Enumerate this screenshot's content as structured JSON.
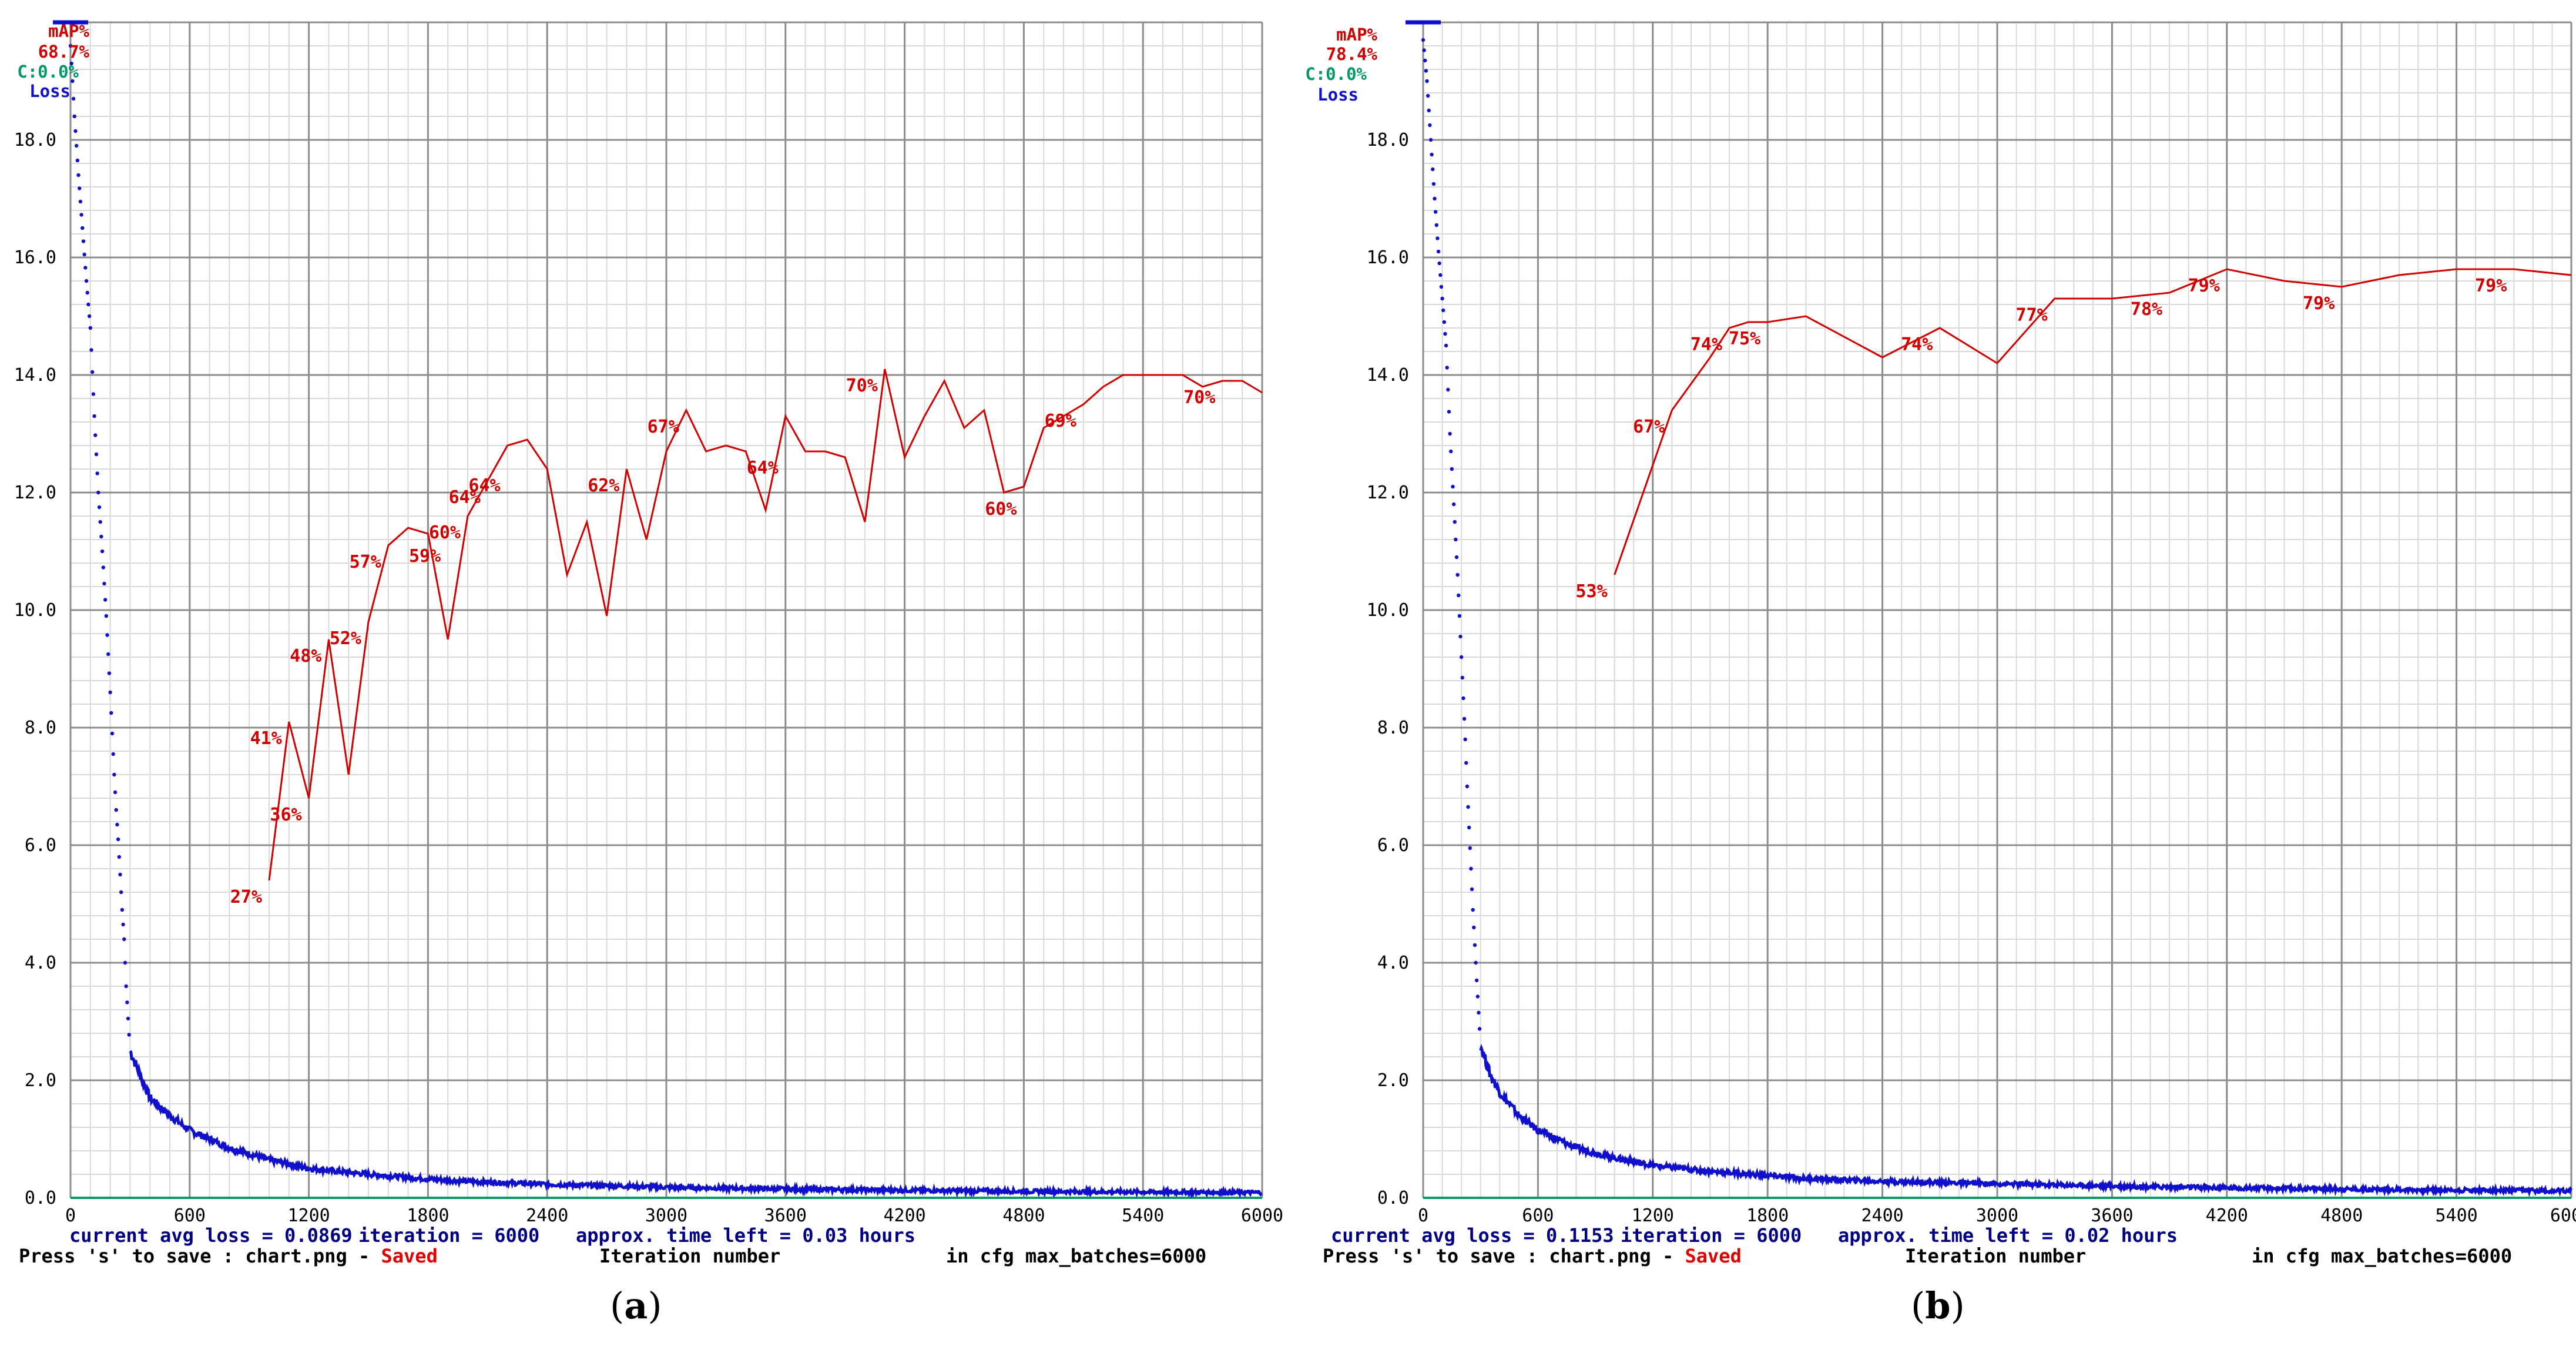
{
  "colors": {
    "map": "#d00000",
    "loss": "#1010cc",
    "accuracy": "#009966",
    "grid_major": "#8c8c8c",
    "grid_minor": "#dadada",
    "info_text": "#000080",
    "saved": "#e00000"
  },
  "charts": [
    {
      "id": "a",
      "caption_open": "(",
      "caption_letter": "a",
      "caption_close": ")",
      "legend": {
        "map_label": "mAP%",
        "map_value": "68.7%",
        "acc_label": "C:0.0%",
        "loss_label": "Loss"
      },
      "info": {
        "avg_loss": "current avg loss = 0.0869",
        "iteration": "iteration = 6000",
        "time_left": "approx. time left = 0.03 hours",
        "save_prefix": "Press 's' to save : chart.png -",
        "saved": "Saved",
        "xlabel": "Iteration number",
        "max_batches": "in cfg max_batches=6000"
      },
      "chart_data": {
        "type": "line",
        "xlim": [
          0,
          6000
        ],
        "ylim": [
          0,
          20
        ],
        "x_ticks": [
          "0",
          "600",
          "1200",
          "1800",
          "2400",
          "3000",
          "3600",
          "4200",
          "4800",
          "5400",
          "6000"
        ],
        "y_ticks": [
          "0.0",
          "2.0",
          "4.0",
          "6.0",
          "8.0",
          "10.0",
          "12.0",
          "14.0",
          "16.0",
          "18.0"
        ],
        "grid": true,
        "map_series": {
          "x": [
            1000,
            1100,
            1200,
            1300,
            1400,
            1500,
            1600,
            1700,
            1800,
            1900,
            2000,
            2100,
            2200,
            2300,
            2400,
            2500,
            2600,
            2700,
            2800,
            2900,
            3000,
            3100,
            3200,
            3300,
            3400,
            3500,
            3600,
            3700,
            3800,
            3900,
            4000,
            4100,
            4200,
            4300,
            4400,
            4500,
            4600,
            4700,
            4800,
            4900,
            5000,
            5100,
            5200,
            5300,
            5400,
            5500,
            5600,
            5700,
            5800,
            5900,
            6000
          ],
          "y": [
            5.4,
            8.1,
            6.8,
            9.5,
            7.2,
            9.8,
            11.1,
            11.4,
            11.3,
            9.5,
            11.6,
            12.2,
            12.8,
            12.9,
            12.4,
            10.6,
            11.5,
            9.9,
            12.4,
            11.2,
            12.7,
            13.4,
            12.7,
            12.8,
            12.7,
            11.7,
            13.3,
            12.7,
            12.7,
            12.6,
            11.5,
            14.1,
            12.6,
            13.3,
            13.9,
            13.1,
            13.4,
            12.0,
            12.1,
            13.1,
            13.3,
            13.5,
            13.8,
            14.0,
            14.0,
            14.0,
            14.0,
            13.8,
            13.9,
            13.9,
            13.7
          ],
          "labels": [
            {
              "text": "27%",
              "x": 1000,
              "y": 5.4
            },
            {
              "text": "41%",
              "x": 1100,
              "y": 8.1
            },
            {
              "text": "36%",
              "x": 1200,
              "y": 6.8
            },
            {
              "text": "48%",
              "x": 1300,
              "y": 9.5
            },
            {
              "text": "52%",
              "x": 1500,
              "y": 9.8
            },
            {
              "text": "57%",
              "x": 1600,
              "y": 11.1
            },
            {
              "text": "59%",
              "x": 1900,
              "y": 11.2
            },
            {
              "text": "60%",
              "x": 2000,
              "y": 11.6
            },
            {
              "text": "64%",
              "x": 2100,
              "y": 12.2
            },
            {
              "text": "64%",
              "x": 2200,
              "y": 12.4
            },
            {
              "text": "62%",
              "x": 2800,
              "y": 12.4
            },
            {
              "text": "67%",
              "x": 3100,
              "y": 13.4
            },
            {
              "text": "64%",
              "x": 3600,
              "y": 12.7
            },
            {
              "text": "70%",
              "x": 4100,
              "y": 14.1
            },
            {
              "text": "60%",
              "x": 4800,
              "y": 12.0
            },
            {
              "text": "69%",
              "x": 5100,
              "y": 13.5
            },
            {
              "text": "70%",
              "x": 5800,
              "y": 13.9
            }
          ]
        },
        "loss_series": {
          "x": [
            0,
            20,
            40,
            60,
            80,
            100,
            120,
            140,
            160,
            180,
            200,
            210,
            220,
            230,
            240,
            250,
            260,
            270,
            280,
            300,
            350,
            400,
            500,
            600,
            800,
            1000,
            1200,
            1500,
            1800,
            2000,
            2400,
            3000,
            3600,
            4200,
            4800,
            5400,
            6000
          ],
          "y": [
            19.6,
            18.4,
            17.4,
            16.5,
            15.6,
            14.8,
            13.3,
            12.0,
            11.0,
            9.9,
            8.6,
            7.9,
            7.2,
            6.6,
            6.1,
            5.5,
            4.9,
            4.4,
            3.6,
            2.5,
            2.1,
            1.7,
            1.4,
            1.15,
            0.85,
            0.65,
            0.5,
            0.4,
            0.32,
            0.28,
            0.23,
            0.18,
            0.15,
            0.13,
            0.11,
            0.1,
            0.09
          ]
        }
      }
    },
    {
      "id": "b",
      "caption_open": "(",
      "caption_letter": "b",
      "caption_close": ")",
      "legend": {
        "map_label": "mAP%",
        "map_value": "78.4%",
        "acc_label": "C:0.0%",
        "loss_label": "Loss"
      },
      "info": {
        "avg_loss": "current avg loss = 0.1153",
        "iteration": "iteration = 6000",
        "time_left": "approx. time left = 0.02 hours",
        "save_prefix": "Press 's' to save : chart.png -",
        "saved": "Saved",
        "xlabel": "Iteration number",
        "max_batches": "in cfg max_batches=6000"
      },
      "chart_data": {
        "type": "line",
        "xlim": [
          0,
          6000
        ],
        "ylim": [
          0,
          20
        ],
        "x_ticks": [
          "0",
          "600",
          "1200",
          "1800",
          "2400",
          "3000",
          "3600",
          "4200",
          "4800",
          "5400",
          "6000"
        ],
        "y_ticks": [
          "0.0",
          "2.0",
          "4.0",
          "6.0",
          "8.0",
          "10.0",
          "12.0",
          "14.0",
          "16.0",
          "18.0"
        ],
        "grid": true,
        "map_series": {
          "x": [
            1000,
            1300,
            1500,
            1600,
            1700,
            1800,
            2000,
            2400,
            2700,
            3000,
            3300,
            3600,
            3900,
            4200,
            4500,
            4800,
            5100,
            5400,
            5700,
            6000
          ],
          "y": [
            10.6,
            13.4,
            14.3,
            14.8,
            14.9,
            14.9,
            15.0,
            14.3,
            14.8,
            14.2,
            15.3,
            15.3,
            15.4,
            15.8,
            15.6,
            15.5,
            15.7,
            15.8,
            15.8,
            15.7
          ],
          "labels": [
            {
              "text": "53%",
              "x": 1000,
              "y": 10.6
            },
            {
              "text": "67%",
              "x": 1300,
              "y": 13.4
            },
            {
              "text": "74%",
              "x": 1600,
              "y": 14.8
            },
            {
              "text": "75%",
              "x": 1800,
              "y": 14.9
            },
            {
              "text": "74%",
              "x": 2700,
              "y": 14.8
            },
            {
              "text": "77%",
              "x": 3300,
              "y": 15.3
            },
            {
              "text": "78%",
              "x": 3900,
              "y": 15.4
            },
            {
              "text": "79%",
              "x": 4200,
              "y": 15.8
            },
            {
              "text": "79%",
              "x": 4800,
              "y": 15.5
            },
            {
              "text": "79%",
              "x": 5700,
              "y": 15.8
            }
          ]
        },
        "loss_series": {
          "x": [
            0,
            20,
            40,
            60,
            80,
            100,
            120,
            140,
            160,
            180,
            200,
            210,
            220,
            230,
            240,
            250,
            260,
            270,
            280,
            300,
            350,
            400,
            450,
            500,
            600,
            800,
            1000,
            1200,
            1500,
            1800,
            2000,
            2400,
            3000,
            3600,
            4200,
            4800,
            5400,
            6000
          ],
          "y": [
            19.7,
            19.0,
            18.0,
            17.0,
            16.1,
            15.3,
            14.5,
            13.0,
            11.8,
            10.6,
            9.2,
            8.5,
            7.8,
            7.0,
            6.3,
            5.6,
            4.9,
            4.3,
            3.7,
            2.6,
            2.1,
            1.8,
            1.6,
            1.4,
            1.15,
            0.85,
            0.68,
            0.55,
            0.45,
            0.38,
            0.33,
            0.28,
            0.24,
            0.2,
            0.17,
            0.15,
            0.13,
            0.12
          ]
        }
      }
    }
  ]
}
